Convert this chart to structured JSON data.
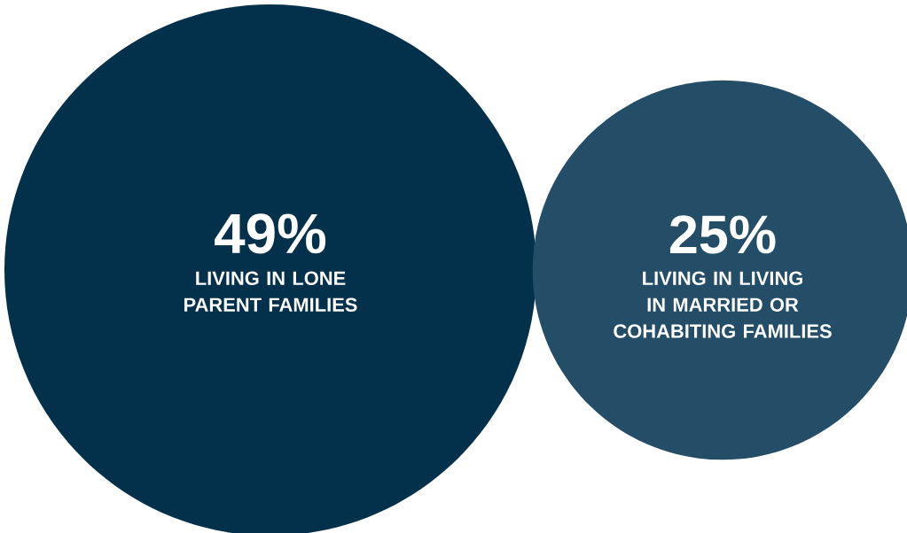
{
  "chart_data": {
    "type": "other",
    "categories": [
      "LIVING IN LONE PARENT FAMILIES",
      "LIVING IN LIVING IN MARRIED OR COHABITING FAMILIES"
    ],
    "values": [
      49,
      25
    ],
    "value_labels": [
      "49%",
      "25%"
    ],
    "colors": [
      "#03304a",
      "#244d68"
    ]
  }
}
